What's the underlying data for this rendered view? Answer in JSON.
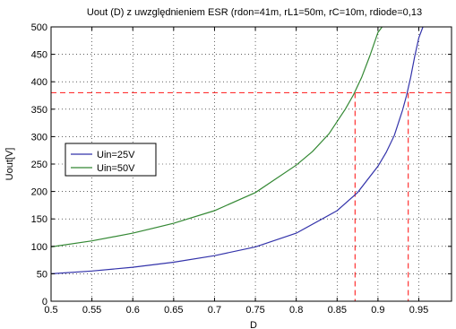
{
  "chart_data": {
    "type": "line",
    "title": "Uout (D) z uwzględnieniem ESR (rdon=41m, rL1=50m, rC=10m, rdiode=0,13",
    "xlabel": "D",
    "ylabel": "Uout[V]",
    "xlim": [
      0.5,
      0.99
    ],
    "ylim": [
      0,
      500
    ],
    "x_ticks": [
      "0.5",
      "0.55",
      "0.6",
      "0.65",
      "0.7",
      "0.75",
      "0.8",
      "0.85",
      "0.9",
      "0.95"
    ],
    "y_ticks": [
      "0",
      "50",
      "100",
      "150",
      "200",
      "250",
      "300",
      "350",
      "400",
      "450",
      "500"
    ],
    "grid": true,
    "legend_position": "middle-left",
    "series": [
      {
        "name": "Uin=25V",
        "color": "#3333aa",
        "x": [
          0.5,
          0.55,
          0.6,
          0.65,
          0.7,
          0.75,
          0.8,
          0.85,
          0.875,
          0.9,
          0.91,
          0.92,
          0.93,
          0.935,
          0.94,
          0.945,
          0.95,
          0.955
        ],
        "y": [
          50,
          55,
          62,
          71,
          83,
          99,
          124,
          165,
          198,
          246,
          271,
          302,
          348,
          375,
          408,
          446,
          480,
          500
        ]
      },
      {
        "name": "Uin=50V",
        "color": "#338833",
        "x": [
          0.5,
          0.55,
          0.6,
          0.65,
          0.7,
          0.75,
          0.8,
          0.82,
          0.84,
          0.86,
          0.87,
          0.88,
          0.89,
          0.9,
          0.905
        ],
        "y": [
          99,
          110,
          124,
          142,
          165,
          198,
          248,
          273,
          305,
          350,
          376,
          408,
          447,
          490,
          500
        ]
      }
    ],
    "reference_lines": {
      "color": "#ff3333",
      "y_level": 380,
      "x_levels": [
        0.872,
        0.937
      ]
    }
  }
}
